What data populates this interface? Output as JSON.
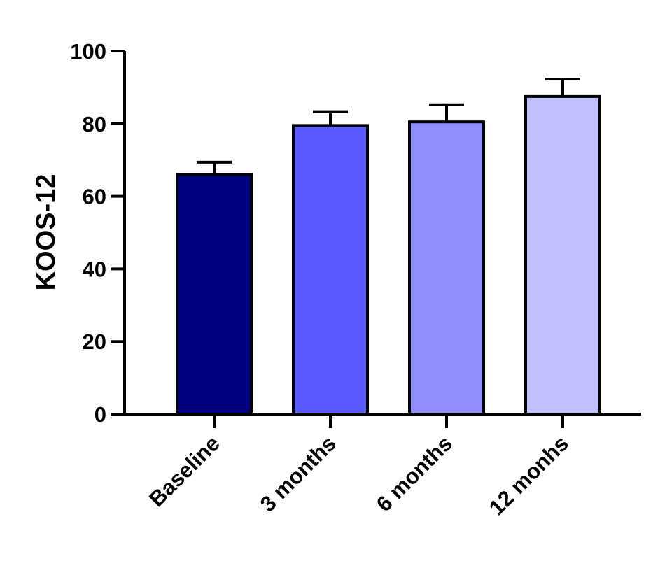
{
  "chart_data": {
    "type": "bar",
    "title": "",
    "xlabel": "",
    "ylabel": "KOOS-12",
    "ylim": [
      0,
      100
    ],
    "yticks": [
      0,
      20,
      40,
      60,
      80,
      100
    ],
    "categories": [
      "Baseline",
      "3 months",
      "6 months",
      "12 monhs"
    ],
    "values": [
      66,
      79.5,
      80.5,
      87.5
    ],
    "error_upper": [
      3.4,
      3.8,
      4.7,
      4.8
    ],
    "colors": [
      "#000080",
      "#5a5aff",
      "#8f8fff",
      "#c0c0ff"
    ],
    "grid": false,
    "legend": "none"
  }
}
